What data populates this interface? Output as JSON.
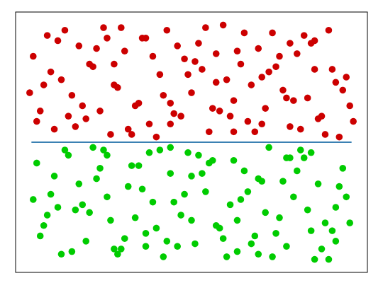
{
  "chart_data": {
    "type": "scatter",
    "xlim": [
      0,
      1
    ],
    "ylim": [
      0,
      1
    ],
    "series": [
      {
        "color": "#cc0000",
        "x": [
          0.05,
          0.07,
          0.09,
          0.11,
          0.13,
          0.16,
          0.18,
          0.2,
          0.22,
          0.25,
          0.27,
          0.29,
          0.31,
          0.34,
          0.36,
          0.38,
          0.41,
          0.43,
          0.45,
          0.48,
          0.5,
          0.52,
          0.55,
          0.57,
          0.59,
          0.62,
          0.64,
          0.66,
          0.69,
          0.71,
          0.73,
          0.76,
          0.78,
          0.8,
          0.83,
          0.85,
          0.87,
          0.9,
          0.92,
          0.94,
          0.06,
          0.1,
          0.14,
          0.19,
          0.23,
          0.28,
          0.32,
          0.37,
          0.42,
          0.47,
          0.51,
          0.56,
          0.6,
          0.65,
          0.7,
          0.74,
          0.79,
          0.84,
          0.88,
          0.93,
          0.08,
          0.15,
          0.21,
          0.26,
          0.35,
          0.39,
          0.44,
          0.49,
          0.54,
          0.58,
          0.63,
          0.68,
          0.72,
          0.77,
          0.82,
          0.86,
          0.91,
          0.95,
          0.04,
          0.17,
          0.24,
          0.3,
          0.4,
          0.46,
          0.53,
          0.61,
          0.67,
          0.75,
          0.81,
          0.89,
          0.12,
          0.33,
          0.57,
          0.7,
          0.85,
          0.62,
          0.28,
          0.44,
          0.78,
          0.96
        ],
        "values": [
          0.83,
          0.62,
          0.91,
          0.55,
          0.74,
          0.68,
          0.87,
          0.59,
          0.79,
          0.94,
          0.53,
          0.71,
          0.85,
          0.64,
          0.9,
          0.57,
          0.76,
          0.93,
          0.61,
          0.82,
          0.69,
          0.88,
          0.54,
          0.73,
          0.95,
          0.66,
          0.8,
          0.58,
          0.86,
          0.63,
          0.92,
          0.7,
          0.56,
          0.84,
          0.67,
          0.89,
          0.6,
          0.78,
          0.52,
          0.75,
          0.58,
          0.77,
          0.93,
          0.64,
          0.86,
          0.72,
          0.55,
          0.9,
          0.68,
          0.6,
          0.81,
          0.63,
          0.74,
          0.92,
          0.57,
          0.79,
          0.66,
          0.88,
          0.53,
          0.7,
          0.72,
          0.6,
          0.8,
          0.9,
          0.65,
          0.83,
          0.57,
          0.76,
          0.94,
          0.62,
          0.85,
          0.54,
          0.77,
          0.67,
          0.91,
          0.59,
          0.73,
          0.64,
          0.69,
          0.56,
          0.62,
          0.94,
          0.52,
          0.87,
          0.78,
          0.6,
          0.72,
          0.83,
          0.55,
          0.93,
          0.89,
          0.53,
          0.84,
          0.75,
          0.78,
          0.54,
          0.8,
          0.65,
          0.88,
          0.58
        ]
      },
      {
        "color": "#00cc00",
        "x": [
          0.06,
          0.08,
          0.1,
          0.13,
          0.15,
          0.17,
          0.2,
          0.23,
          0.25,
          0.27,
          0.3,
          0.32,
          0.35,
          0.37,
          0.39,
          0.42,
          0.44,
          0.47,
          0.49,
          0.51,
          0.54,
          0.56,
          0.58,
          0.61,
          0.63,
          0.65,
          0.68,
          0.7,
          0.72,
          0.75,
          0.77,
          0.79,
          0.82,
          0.84,
          0.86,
          0.89,
          0.91,
          0.93,
          0.95,
          0.05,
          0.11,
          0.16,
          0.21,
          0.26,
          0.31,
          0.36,
          0.41,
          0.46,
          0.5,
          0.55,
          0.6,
          0.64,
          0.69,
          0.74,
          0.78,
          0.83,
          0.87,
          0.92,
          0.07,
          0.14,
          0.19,
          0.24,
          0.29,
          0.34,
          0.38,
          0.43,
          0.48,
          0.53,
          0.57,
          0.62,
          0.67,
          0.71,
          0.76,
          0.81,
          0.85,
          0.9,
          0.94,
          0.09,
          0.18,
          0.28,
          0.33,
          0.4,
          0.45,
          0.52,
          0.59,
          0.66,
          0.73,
          0.8,
          0.88,
          0.12,
          0.22,
          0.37,
          0.5,
          0.63,
          0.77,
          0.91,
          0.44,
          0.26,
          0.69,
          0.84
        ],
        "values": [
          0.42,
          0.18,
          0.3,
          0.07,
          0.45,
          0.24,
          0.12,
          0.36,
          0.47,
          0.2,
          0.09,
          0.33,
          0.41,
          0.15,
          0.27,
          0.06,
          0.38,
          0.22,
          0.46,
          0.11,
          0.31,
          0.43,
          0.17,
          0.26,
          0.08,
          0.39,
          0.14,
          0.35,
          0.48,
          0.21,
          0.1,
          0.29,
          0.44,
          0.16,
          0.34,
          0.05,
          0.25,
          0.4,
          0.19,
          0.28,
          0.37,
          0.08,
          0.23,
          0.45,
          0.13,
          0.32,
          0.47,
          0.1,
          0.2,
          0.42,
          0.06,
          0.28,
          0.36,
          0.15,
          0.44,
          0.24,
          0.09,
          0.33,
          0.14,
          0.47,
          0.26,
          0.4,
          0.07,
          0.21,
          0.46,
          0.12,
          0.3,
          0.38,
          0.18,
          0.43,
          0.11,
          0.23,
          0.35,
          0.47,
          0.05,
          0.16,
          0.29,
          0.22,
          0.34,
          0.09,
          0.41,
          0.17,
          0.27,
          0.45,
          0.13,
          0.31,
          0.06,
          0.39,
          0.19,
          0.25,
          0.48,
          0.1,
          0.37,
          0.2,
          0.44,
          0.12,
          0.48,
          0.29,
          0.07,
          0.46
        ]
      }
    ],
    "line": {
      "color": "#1f6fa8",
      "x": [
        0.045,
        0.955
      ],
      "values": [
        0.5,
        0.5
      ]
    }
  }
}
